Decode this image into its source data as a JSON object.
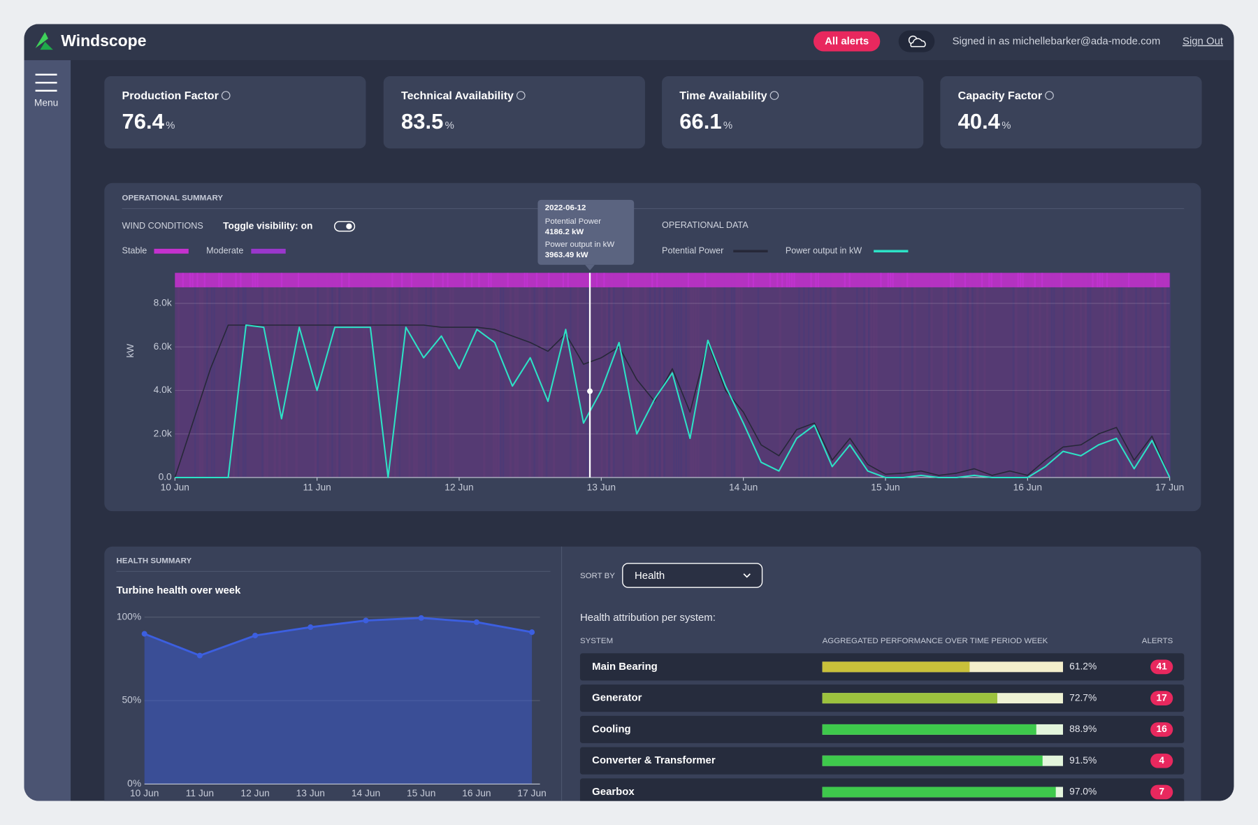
{
  "header": {
    "brand": "Windscope",
    "alerts_button": "All alerts",
    "signed_in": "Signed in as michellebarker@ada-mode.com",
    "sign_out": "Sign Out"
  },
  "sidebar": {
    "menu": "Menu"
  },
  "kpis": [
    {
      "label": "Production Factor",
      "value": 76.4,
      "unit": "%"
    },
    {
      "label": "Technical Availability",
      "value": 83.5,
      "unit": "%"
    },
    {
      "label": "Time Availability",
      "value": 66.1,
      "unit": "%"
    },
    {
      "label": "Capacity Factor",
      "value": 40.4,
      "unit": "%"
    }
  ],
  "operational_summary": {
    "title": "OPERATIONAL SUMMARY",
    "wind_conditions_label": "WIND CONDITIONS",
    "toggle": "Toggle visibility: on",
    "wind_legend": [
      {
        "name": "Stable",
        "color": "#c531cf"
      },
      {
        "name": "Moderate",
        "color": "#9a37cc"
      }
    ],
    "operational_data_label": "OPERATIONAL DATA",
    "tooltip": {
      "date": "2022-06-12",
      "x": 2.92,
      "rows": [
        {
          "label": "Potential Power",
          "value": 4186.2,
          "value_label": "4186.2 kW"
        },
        {
          "label": "Power output in kW",
          "value": 3963.49,
          "value_label": "3963.49 kW"
        }
      ]
    }
  },
  "chart_data": [
    {
      "type": "line",
      "y_label": "kW",
      "grid": true,
      "x": [
        0,
        0.125,
        0.25,
        0.375,
        0.5,
        0.625,
        0.75,
        0.875,
        1,
        1.125,
        1.25,
        1.375,
        1.5,
        1.625,
        1.75,
        1.875,
        2,
        2.125,
        2.25,
        2.375,
        2.5,
        2.625,
        2.75,
        2.875,
        3,
        3.125,
        3.25,
        3.375,
        3.5,
        3.625,
        3.75,
        3.875,
        4,
        4.125,
        4.25,
        4.375,
        4.5,
        4.625,
        4.75,
        4.875,
        5,
        5.125,
        5.25,
        5.375,
        5.5,
        5.625,
        5.75,
        5.875,
        6,
        6.125,
        6.25,
        6.375,
        6.5,
        6.625,
        6.75,
        6.875,
        7
      ],
      "xlim": [
        0,
        7
      ],
      "xticks": [
        {
          "value": 0,
          "label": "10 Jun"
        },
        {
          "value": 1,
          "label": "11 Jun"
        },
        {
          "value": 2,
          "label": "12 Jun"
        },
        {
          "value": 3,
          "label": "13 Jun"
        },
        {
          "value": 4,
          "label": "14 Jun"
        },
        {
          "value": 5,
          "label": "15 Jun"
        },
        {
          "value": 6,
          "label": "16 Jun"
        },
        {
          "value": 7,
          "label": "17 Jun"
        }
      ],
      "ylim": [
        0,
        9400
      ],
      "yticks": [
        {
          "value": 0,
          "label": "0.0"
        },
        {
          "value": 2000,
          "label": "2.0k"
        },
        {
          "value": 4000,
          "label": "4.0k"
        },
        {
          "value": 6000,
          "label": "6.0k"
        },
        {
          "value": 8000,
          "label": "8.0k"
        }
      ],
      "series": [
        {
          "name": "Potential Power",
          "color": "#262838",
          "values": [
            0,
            2500,
            5000,
            7000,
            7000,
            7000,
            7000,
            7000,
            7000,
            7000,
            7000,
            7000,
            7000,
            7000,
            7000,
            6900,
            6900,
            6900,
            6800,
            6500,
            6200,
            5800,
            6600,
            5200,
            5500,
            6000,
            4500,
            3500,
            5000,
            3000,
            6200,
            4000,
            3000,
            1500,
            1000,
            2200,
            2500,
            800,
            1800,
            600,
            150,
            200,
            300,
            100,
            200,
            400,
            100,
            300,
            100,
            800,
            1400,
            1500,
            2000,
            2300,
            800,
            1900,
            0
          ]
        },
        {
          "name": "Power output in kW",
          "color": "#2de2c6",
          "values": [
            0,
            0,
            0,
            0,
            7000,
            6900,
            2700,
            6900,
            4000,
            6900,
            6900,
            6900,
            0,
            6900,
            5500,
            6500,
            5000,
            6800,
            6200,
            4200,
            5500,
            3500,
            6800,
            2500,
            4000,
            6200,
            2000,
            3600,
            4800,
            1800,
            6300,
            4200,
            2500,
            700,
            300,
            1800,
            2400,
            500,
            1500,
            300,
            0,
            0,
            100,
            0,
            0,
            100,
            0,
            0,
            0,
            500,
            1200,
            1000,
            1500,
            1800,
            400,
            1700,
            0
          ]
        }
      ]
    },
    {
      "type": "area",
      "title": "Turbine health over week",
      "color": "#3c5fe0",
      "categories": [
        "10 Jun",
        "11 Jun",
        "12 Jun",
        "13 Jun",
        "14 Jun",
        "15 Jun",
        "16 Jun",
        "17 Jun"
      ],
      "values": [
        90,
        77,
        89,
        94,
        98,
        99.5,
        97,
        91
      ],
      "ylim": [
        0,
        100
      ],
      "yticks": [
        {
          "value": 0,
          "label": "0%"
        },
        {
          "value": 50,
          "label": "50%"
        },
        {
          "value": 100,
          "label": "100%"
        }
      ],
      "grid": true
    }
  ],
  "health_summary": {
    "title": "HEALTH SUMMARY",
    "sort_by": "SORT BY",
    "sort_value": "Health",
    "attribution": "Health attribution per system:",
    "columns": [
      "SYSTEM",
      "AGGREGATED PERFORMANCE OVER TIME PERIOD WEEK",
      "ALERTS"
    ],
    "systems": [
      {
        "name": "Main Bearing",
        "value": 61.2,
        "value_label": "61.2%",
        "alerts": 41,
        "color": "#c9c13a",
        "track_color": "#f3eecb"
      },
      {
        "name": "Generator",
        "value": 72.7,
        "value_label": "72.7%",
        "alerts": 17,
        "color": "#9cc23e",
        "track_color": "#eef2d4"
      },
      {
        "name": "Cooling",
        "value": 88.9,
        "value_label": "88.9%",
        "alerts": 16,
        "color": "#3ec94c",
        "track_color": "#e3f5dc"
      },
      {
        "name": "Converter & Transformer",
        "value": 91.5,
        "value_label": "91.5%",
        "alerts": 4,
        "color": "#3ec94c",
        "track_color": "#e3f5dc"
      },
      {
        "name": "Gearbox",
        "value": 97.0,
        "value_label": "97.0%",
        "alerts": 7,
        "color": "#3ec94c",
        "track_color": "#e3f5dc"
      }
    ]
  }
}
